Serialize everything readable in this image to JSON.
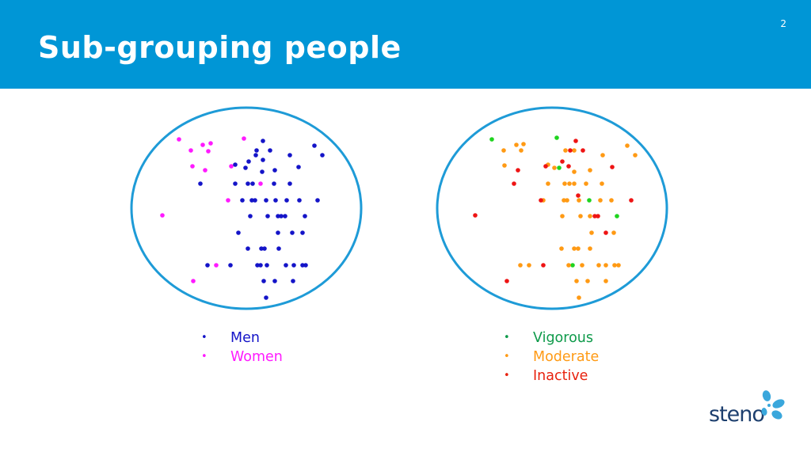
{
  "slide": {
    "title": "Sub-grouping people",
    "page_number": "2"
  },
  "colors": {
    "header": "#0096d6",
    "circle_stroke": "#1e9bd7",
    "men": "#1414c8",
    "women": "#ff1aff",
    "vigorous": "#1fd41f",
    "moderate": "#ff9a14",
    "inactive": "#ee1414"
  },
  "legend_sex": [
    {
      "label": "Men",
      "color": "#1414c8"
    },
    {
      "label": "Women",
      "color": "#ff1aff"
    }
  ],
  "legend_activity": [
    {
      "label": "Vigorous",
      "color": "#0e9a4a"
    },
    {
      "label": "Moderate",
      "color": "#ff9a14"
    },
    {
      "label": "Inactive",
      "color": "#e8220e"
    }
  ],
  "logo": {
    "text": "steno"
  }
}
